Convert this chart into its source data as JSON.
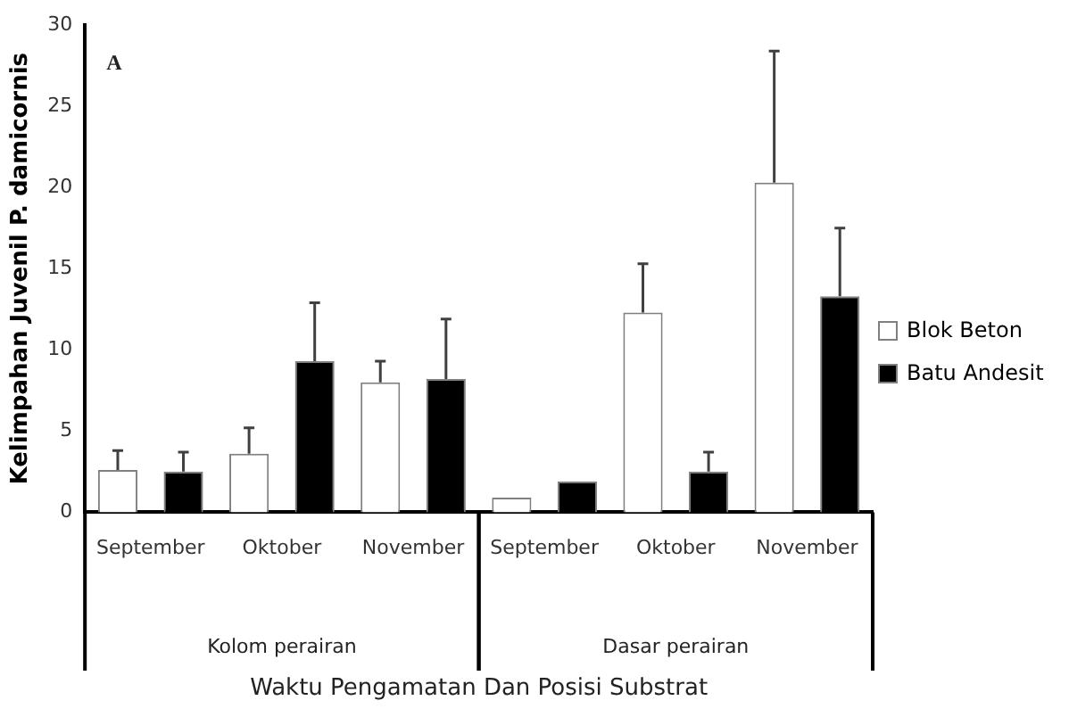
{
  "chart_data": {
    "type": "bar",
    "ylabel": "Kelimpahan Juvenil P. damicornis",
    "xlabel": "Waktu Pengamatan Dan Posisi Substrat",
    "annotations": [
      "A",
      "Kolom perairan",
      "Dasar perairan"
    ],
    "categories": [
      "September",
      "Oktober",
      "November",
      "September",
      "Oktober",
      "November"
    ],
    "series": [
      {
        "name": "Blok Beton",
        "color": "#ffffff",
        "values": [
          2.6,
          3.6,
          8.0,
          0.9,
          12.3,
          20.3
        ],
        "errors": [
          [
            2.6,
            3.8
          ],
          [
            3.6,
            5.2
          ],
          [
            8.0,
            9.3
          ],
          null,
          [
            12.3,
            15.3
          ],
          [
            20.3,
            28.4
          ]
        ]
      },
      {
        "name": "Batu Andesit",
        "color": "#000000",
        "values": [
          2.5,
          9.3,
          8.2,
          1.9,
          2.5,
          13.3
        ],
        "errors": [
          [
            2.5,
            3.7
          ],
          [
            9.3,
            12.9
          ],
          [
            8.2,
            11.9
          ],
          null,
          [
            2.5,
            3.7
          ],
          [
            13.3,
            17.5
          ]
        ]
      }
    ],
    "ylim": [
      0,
      30
    ],
    "yticks": [
      0,
      5,
      10,
      15,
      20,
      25,
      30
    ],
    "grid": false,
    "legend": "right"
  }
}
